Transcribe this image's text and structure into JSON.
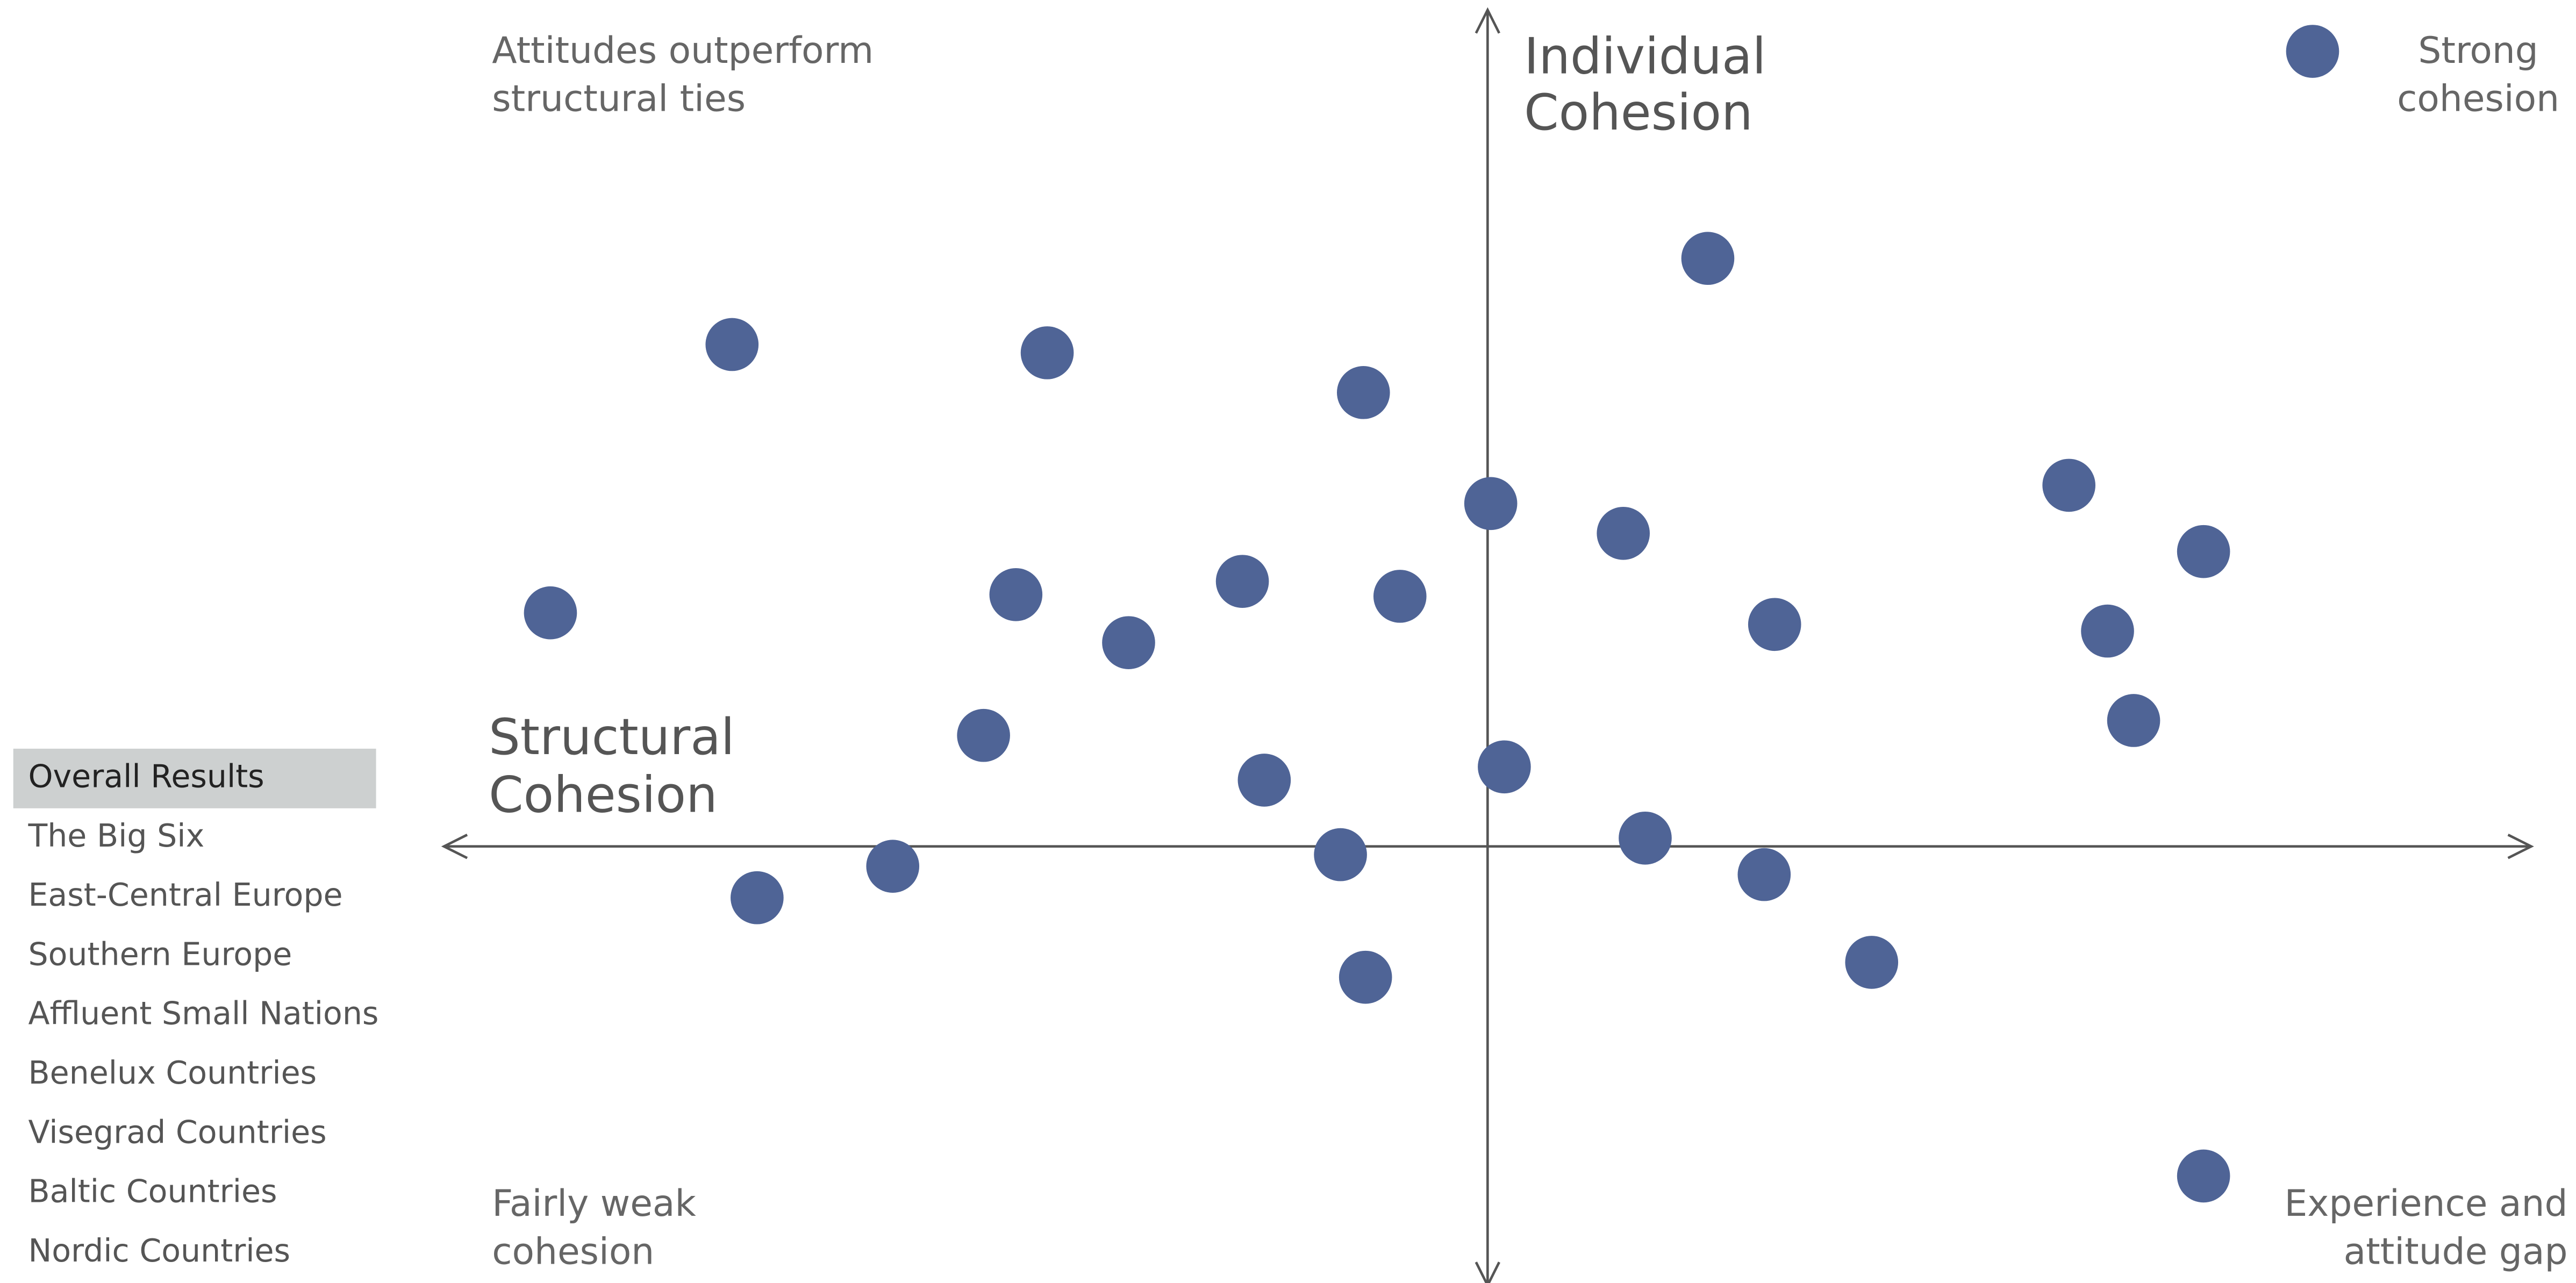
{
  "menu": {
    "items": [
      "Overall Results",
      "The Big Six",
      "East-Central Europe",
      "Southern Europe",
      "Affluent Small Nations",
      "Benelux Countries",
      "Visegrad Countries",
      "Baltic Countries",
      "Nordic Countries"
    ],
    "selected": 0
  },
  "chart_data": {
    "type": "scatter",
    "color": "#4f6496",
    "x_label": [
      "Structural",
      "Cohesion"
    ],
    "y_label": [
      "Individual",
      "Cohesion"
    ],
    "quadrant_labels": {
      "top_left": [
        "Attitudes outperform",
        "structural ties"
      ],
      "top_right": [
        "Strong",
        "cohesion"
      ],
      "bottom_left": [
        "Fairly weak",
        "cohesion"
      ],
      "bottom_right": [
        "Experience and",
        "attitude gap"
      ]
    },
    "xlim": [
      -10,
      10
    ],
    "ylim": [
      -5.3,
      10.1
    ],
    "x": [
      2.11,
      -7.24,
      -4.22,
      -1.19,
      0.03,
      1.3,
      5.57,
      6.86,
      -8.98,
      -4.52,
      -2.35,
      -0.84,
      -3.44,
      2.75,
      5.94,
      6.19,
      -4.83,
      -2.14,
      0.16,
      -5.7,
      -7.0,
      -1.41,
      1.51,
      2.65,
      3.68,
      -1.17,
      6.86
    ],
    "y": [
      7.1,
      6.06,
      5.96,
      5.48,
      4.14,
      3.78,
      4.36,
      3.56,
      2.82,
      3.04,
      3.2,
      3.02,
      2.46,
      2.68,
      2.6,
      1.52,
      1.34,
      0.8,
      0.96,
      -0.24,
      -0.62,
      -0.1,
      0.1,
      -0.34,
      -1.4,
      -1.58,
      -3.98
    ]
  }
}
